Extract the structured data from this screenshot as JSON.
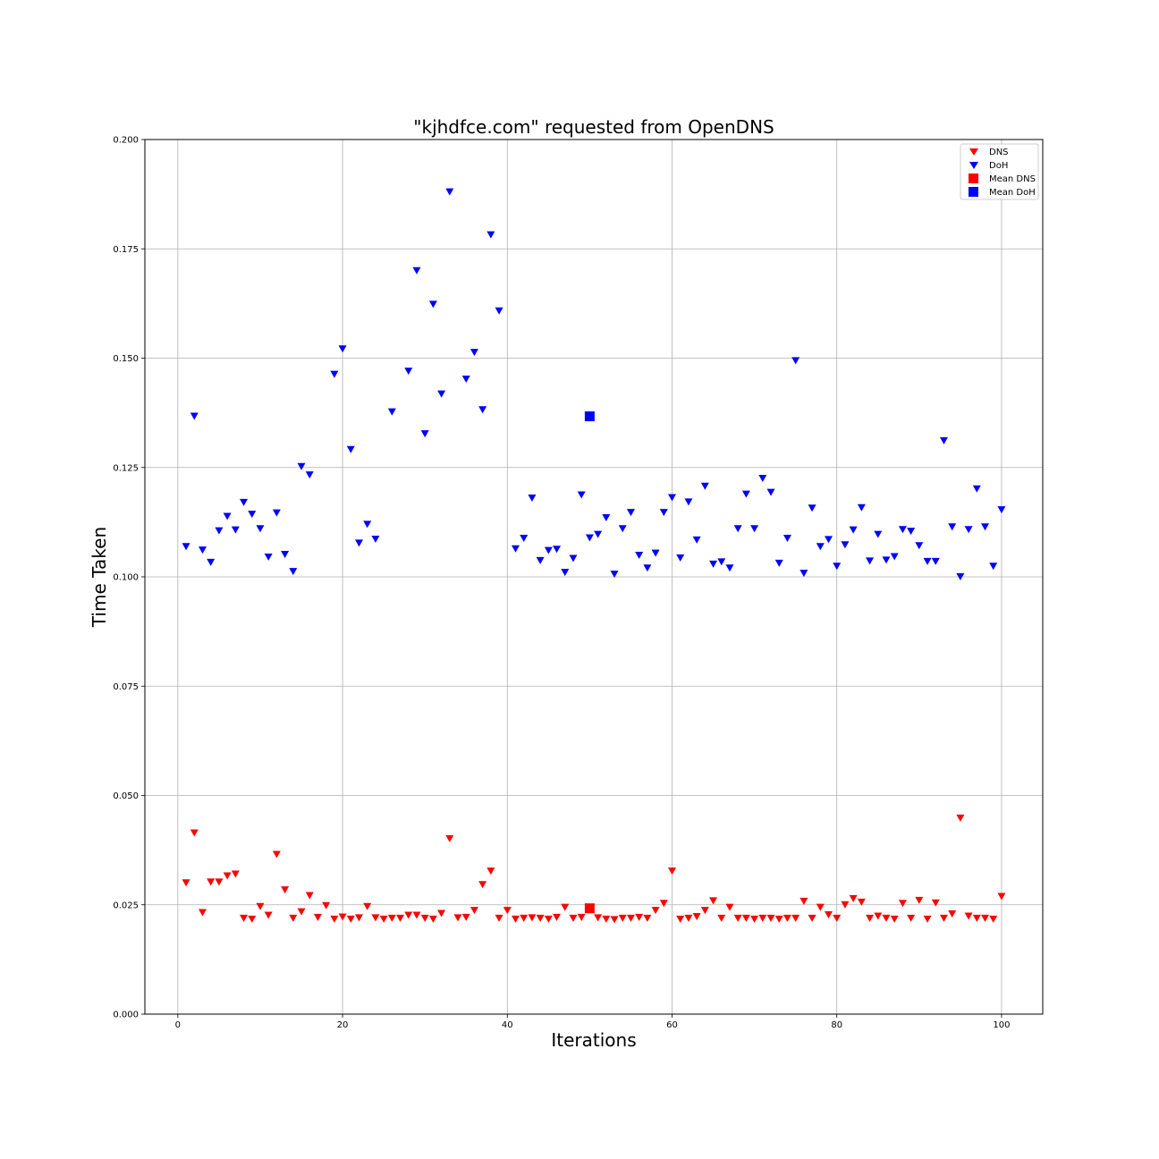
{
  "chart_data": {
    "type": "scatter",
    "title": "\"kjhdfce.com\" requested from OpenDNS",
    "xlabel": "Iterations",
    "ylabel": "Time Taken",
    "xlim": [
      -4,
      105
    ],
    "ylim": [
      0,
      0.2
    ],
    "x_ticks": [
      0,
      20,
      40,
      60,
      80,
      100
    ],
    "x_tick_labels": [
      "0",
      "20",
      "40",
      "60",
      "80",
      "100"
    ],
    "y_ticks": [
      0,
      0.025,
      0.05,
      0.075,
      0.1,
      0.125,
      0.15,
      0.175,
      0.2
    ],
    "y_tick_labels": [
      "0.000",
      "0.025",
      "0.050",
      "0.075",
      "0.100",
      "0.125",
      "0.150",
      "0.175",
      "0.200"
    ],
    "grid": true,
    "legend_position": "top-right",
    "x": [
      1,
      2,
      3,
      4,
      5,
      6,
      7,
      8,
      9,
      10,
      11,
      12,
      13,
      14,
      15,
      16,
      17,
      18,
      19,
      20,
      21,
      22,
      23,
      24,
      25,
      26,
      27,
      28,
      29,
      30,
      31,
      32,
      33,
      34,
      35,
      36,
      37,
      38,
      39,
      40,
      41,
      42,
      43,
      44,
      45,
      46,
      47,
      48,
      49,
      50,
      51,
      52,
      53,
      54,
      55,
      56,
      57,
      58,
      59,
      60,
      61,
      62,
      63,
      64,
      65,
      66,
      67,
      68,
      69,
      70,
      71,
      72,
      73,
      74,
      75,
      76,
      77,
      78,
      79,
      80,
      81,
      82,
      83,
      84,
      85,
      86,
      87,
      88,
      89,
      90,
      91,
      92,
      93,
      94,
      95,
      96,
      97,
      98,
      99,
      100
    ],
    "series": [
      {
        "name": "DNS",
        "color": "#ff0000",
        "marker": "triangle-down",
        "values": [
          0.03,
          0.0414,
          0.0232,
          0.0302,
          0.0302,
          0.0316,
          0.032,
          0.0219,
          0.0217,
          0.0246,
          0.0226,
          0.0365,
          0.0284,
          0.0219,
          0.0234,
          0.0271,
          0.0221,
          0.0248,
          0.0217,
          0.0222,
          0.0217,
          0.022,
          0.0246,
          0.022,
          0.0217,
          0.0219,
          0.0219,
          0.0226,
          0.0226,
          0.0219,
          0.0217,
          0.023,
          0.0401,
          0.022,
          0.0221,
          0.0237,
          0.0296,
          0.0327,
          0.0219,
          0.0237,
          0.0217,
          0.0219,
          0.022,
          0.0219,
          0.0217,
          0.0221,
          0.0244,
          0.0219,
          0.0221,
          0.0242,
          0.022,
          0.0217,
          0.0216,
          0.0219,
          0.0219,
          0.0221,
          0.0219,
          0.0237,
          0.0253,
          0.0327,
          0.0217,
          0.0219,
          0.0223,
          0.0237,
          0.0259,
          0.0219,
          0.0244,
          0.0219,
          0.0219,
          0.0217,
          0.0219,
          0.0219,
          0.0217,
          0.0219,
          0.0219,
          0.0258,
          0.0219,
          0.0244,
          0.0227,
          0.0219,
          0.025,
          0.0264,
          0.0256,
          0.0219,
          0.0224,
          0.0219,
          0.0217,
          0.0253,
          0.0219,
          0.026,
          0.0217,
          0.0254,
          0.0219,
          0.0229,
          0.0448,
          0.0224,
          0.0219,
          0.0219,
          0.0217,
          0.0269
        ]
      },
      {
        "name": "DoH",
        "color": "#0000ff",
        "marker": "triangle-down",
        "values": [
          0.1069,
          0.1367,
          0.1061,
          0.1033,
          0.1105,
          0.1138,
          0.1107,
          0.117,
          0.1143,
          0.111,
          0.1045,
          0.1146,
          0.1051,
          0.1012,
          0.1252,
          0.1233,
          null,
          null,
          0.1463,
          0.1521,
          0.1291,
          0.1077,
          0.112,
          0.1086,
          null,
          0.1377,
          null,
          0.147,
          0.17,
          0.1327,
          0.1623,
          0.1418,
          0.188,
          null,
          0.1452,
          0.1513,
          0.1382,
          0.1782,
          0.1608,
          null,
          0.1064,
          0.1088,
          0.118,
          0.1037,
          0.106,
          0.1063,
          0.101,
          0.1042,
          0.1187,
          0.1089,
          0.1097,
          0.1135,
          0.1006,
          0.111,
          0.1147,
          0.1049,
          0.102,
          0.1054,
          0.1147,
          0.1181,
          0.1043,
          0.1171,
          0.1084,
          0.1207,
          0.1029,
          0.1034,
          0.102,
          0.111,
          0.1189,
          0.111,
          0.1225,
          0.1193,
          0.1031,
          0.1088,
          0.1494,
          0.1008,
          0.1157,
          0.1069,
          0.1085,
          0.1024,
          0.1073,
          0.1107,
          0.1158,
          0.1036,
          0.1097,
          0.1038,
          0.1046,
          0.1108,
          0.1104,
          0.1071,
          0.1035,
          0.1035,
          0.1311,
          0.1114,
          0.1,
          0.1108,
          0.1201,
          0.1114,
          0.1024,
          0.1153
        ]
      },
      {
        "name": "Mean DNS",
        "color": "#ff0000",
        "marker": "square",
        "x": [
          50
        ],
        "values": [
          0.0242
        ]
      },
      {
        "name": "Mean DoH",
        "color": "#0000ff",
        "marker": "square",
        "x": [
          50
        ],
        "values": [
          0.1367
        ]
      }
    ]
  }
}
